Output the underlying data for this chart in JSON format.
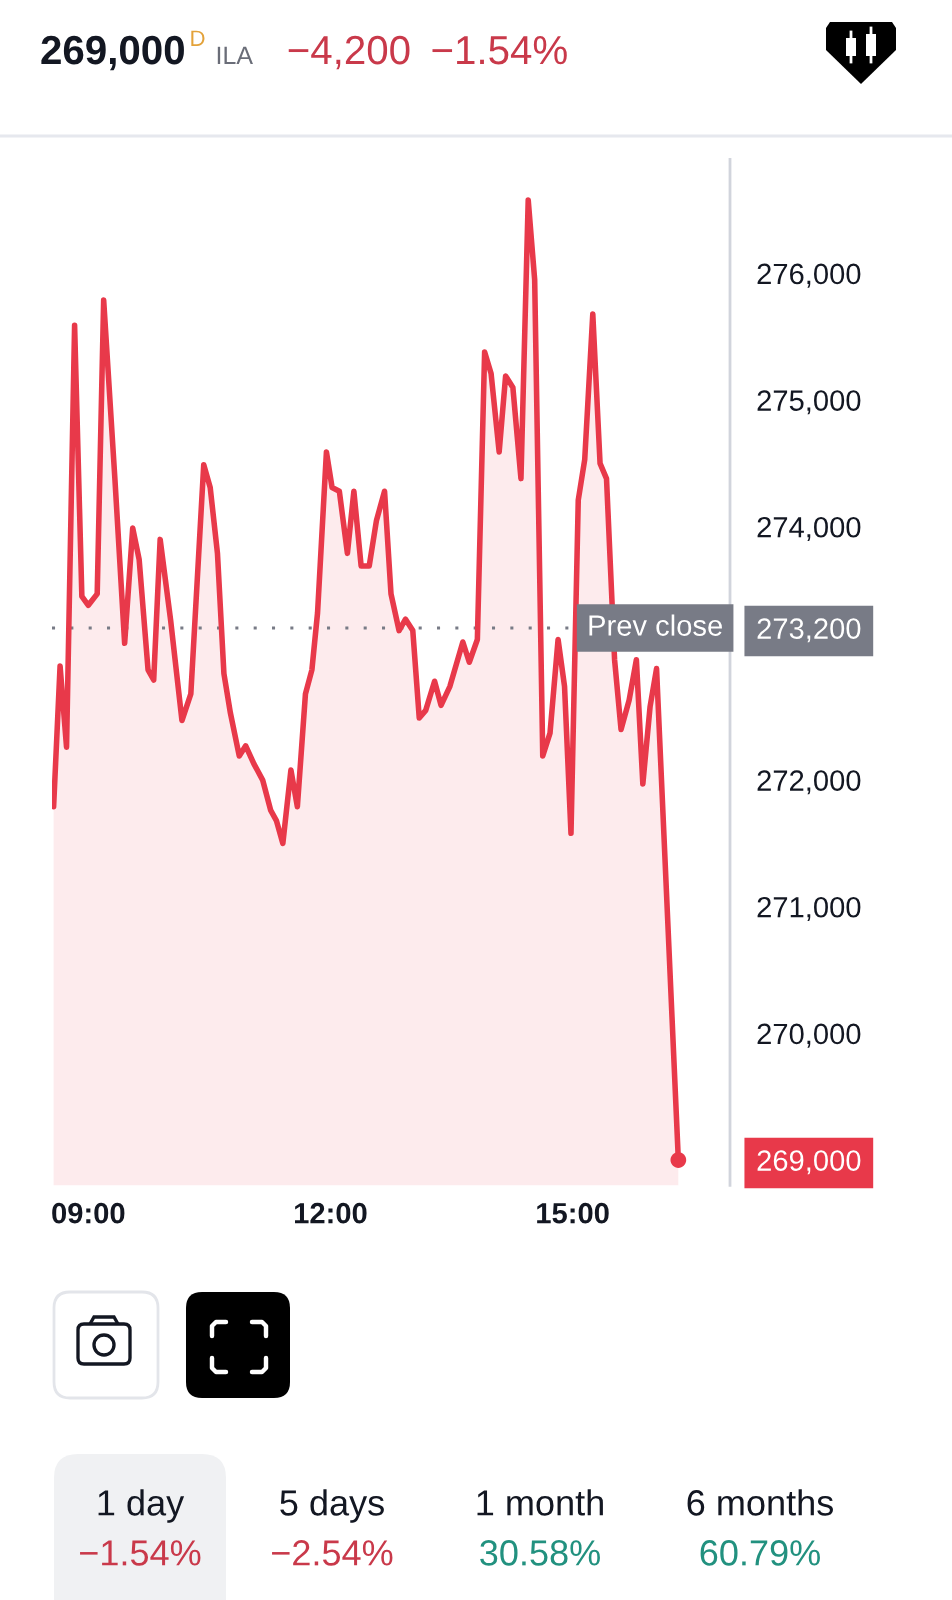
{
  "chart_data": {
    "type": "area",
    "series": [
      {
        "color": "#e8394a",
        "x": [
          8.57,
          8.65,
          8.73,
          8.83,
          8.92,
          9.0,
          9.11,
          9.19,
          9.33,
          9.45,
          9.55,
          9.63,
          9.74,
          9.81,
          9.89,
          10.02,
          10.16,
          10.27,
          10.43,
          10.51,
          10.6,
          10.68,
          10.76,
          10.87,
          10.95,
          11.05,
          11.16,
          11.26,
          11.33,
          11.41,
          11.51,
          11.59,
          11.69,
          11.77,
          11.84,
          11.95,
          12.02,
          12.11,
          12.21,
          12.29,
          12.38,
          12.48,
          12.57,
          12.67,
          12.75,
          12.85,
          12.93,
          13.02,
          13.1,
          13.18,
          13.29,
          13.37,
          13.48,
          13.64,
          13.72,
          13.82,
          13.91,
          13.99,
          14.09,
          14.17,
          14.26,
          14.36,
          14.45,
          14.53,
          14.63,
          14.72,
          14.82,
          14.9,
          14.98,
          15.07,
          15.15,
          15.25,
          15.34,
          15.42,
          15.52,
          15.6,
          15.7,
          15.79,
          15.87,
          15.96,
          16.04,
          16.31
        ],
        "values": [
          271790,
          272900,
          272260,
          275590,
          273450,
          273380,
          273470,
          275790,
          274370,
          273080,
          273990,
          273740,
          272870,
          272790,
          273900,
          273260,
          272470,
          272680,
          274490,
          274310,
          273790,
          272840,
          272530,
          272190,
          272270,
          272130,
          272000,
          271760,
          271680,
          271500,
          272080,
          271790,
          272680,
          272870,
          273320,
          274590,
          274310,
          274280,
          273790,
          274280,
          273690,
          273690,
          274050,
          274280,
          273470,
          273180,
          273270,
          273180,
          272490,
          272550,
          272780,
          272590,
          272740,
          273090,
          272930,
          273110,
          275380,
          275210,
          274590,
          275190,
          275100,
          274380,
          276580,
          275950,
          272190,
          272370,
          273110,
          272740,
          271580,
          274210,
          274530,
          275680,
          274500,
          274380,
          272950,
          272400,
          272630,
          272950,
          271970,
          272580,
          272880,
          269000
        ]
      },
      {
        "type": "scatter",
        "color": "#e8394a",
        "marker": "circle",
        "x": [
          16.31
        ],
        "values": [
          269000
        ]
      }
    ],
    "xlim": [
      8.55,
      16.95
    ],
    "xticks": [
      {
        "value": 9,
        "label": "09:00"
      },
      {
        "value": 12,
        "label": "12:00"
      },
      {
        "value": 15,
        "label": "15:00"
      }
    ],
    "ylim": [
      268800,
      276900
    ],
    "yticks": [
      {
        "value": 269000,
        "label": "269,000"
      },
      {
        "value": 270000,
        "label": "270,000"
      },
      {
        "value": 271000,
        "label": "271,000"
      },
      {
        "value": 272000,
        "label": "272,000"
      },
      {
        "value": 273200,
        "label": "273,200"
      },
      {
        "value": 274000,
        "label": "274,000"
      },
      {
        "value": 275000,
        "label": "275,000"
      },
      {
        "value": 276000,
        "label": "276,000"
      }
    ],
    "ref_lines": [
      {
        "axis": "y",
        "value": 273200,
        "label": "Prev close",
        "color": "#787b86",
        "line_style": "dotted"
      }
    ],
    "annotations": [
      "269,000",
      "D",
      "ILA",
      "−4,200",
      "−1.54%",
      "1 day",
      "−1.54%",
      "5 days",
      "−2.54%",
      "1 month",
      "30.58%",
      "6 months",
      "60.79%"
    ]
  }
}
